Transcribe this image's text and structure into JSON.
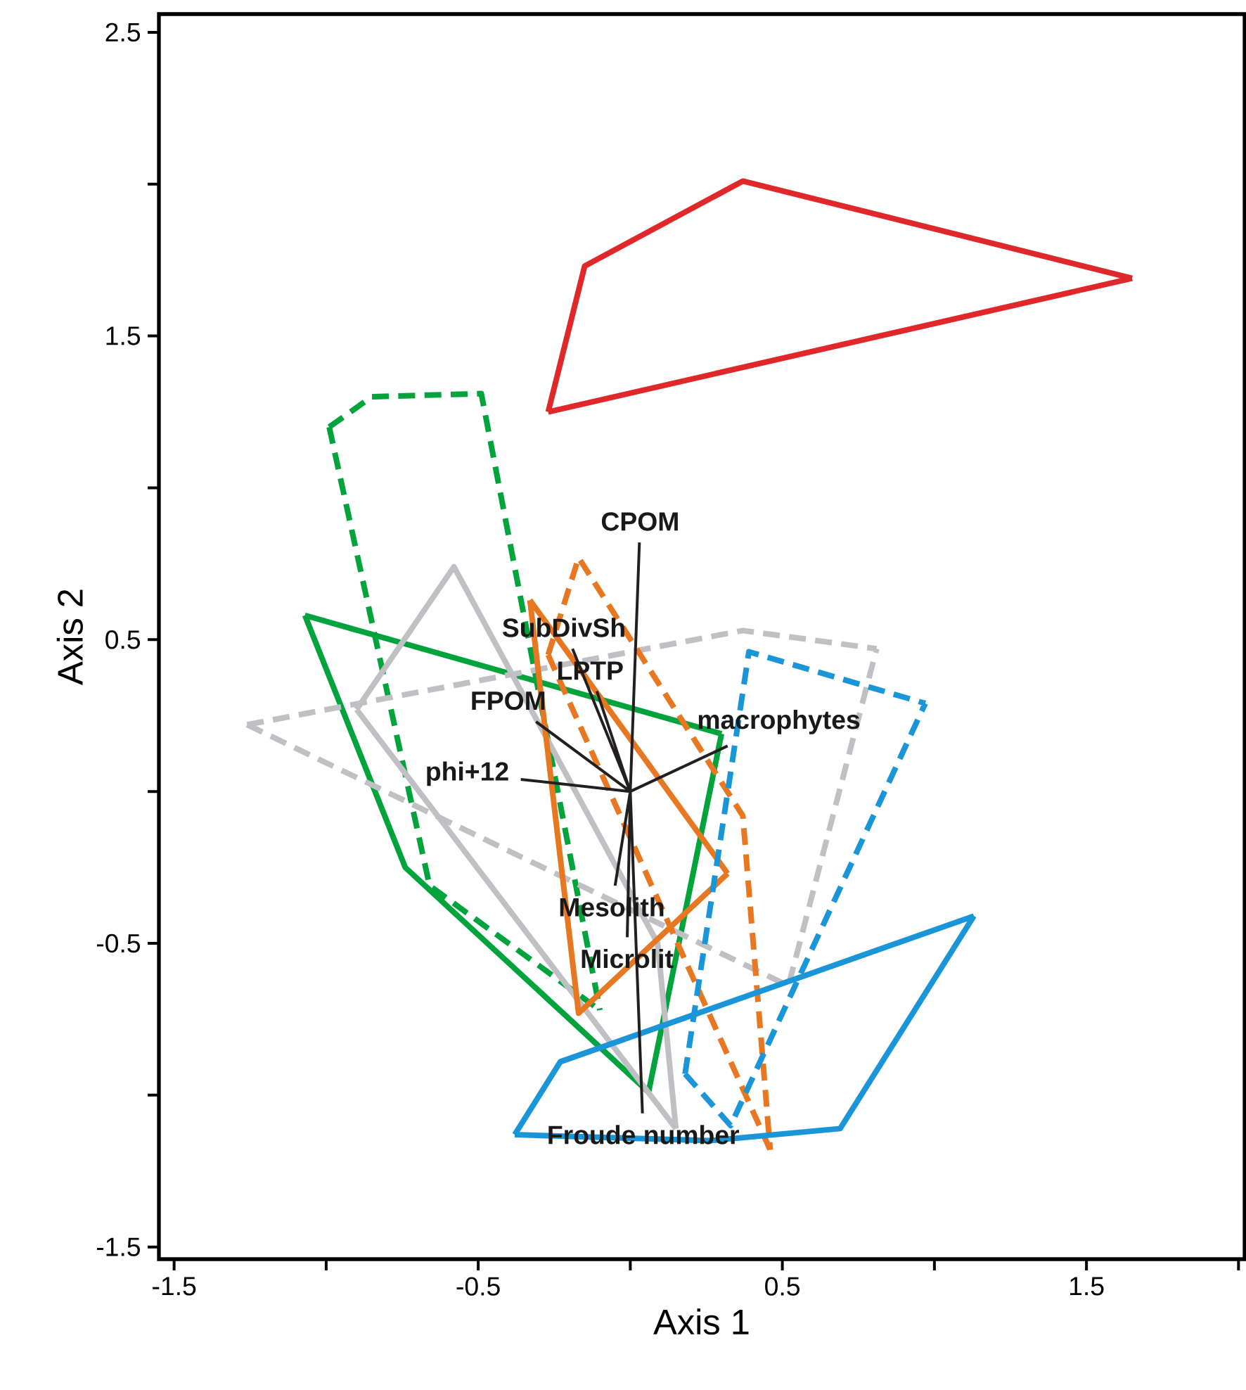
{
  "chart_data": {
    "type": "line",
    "xlabel": "Axis 1",
    "ylabel": "Axis 2",
    "xlim": [
      -1.55,
      2.02
    ],
    "ylim": [
      -1.54,
      2.56
    ],
    "xticks": [
      -1.5,
      {
        "value": -1,
        "label": null
      },
      -0.5,
      {
        "value": 0,
        "label": null
      },
      0.5,
      {
        "value": 1,
        "label": null
      },
      1.5,
      {
        "value": 2,
        "label": null
      }
    ],
    "yticks": [
      -1.5,
      {
        "value": -1,
        "label": null
      },
      -0.5,
      {
        "value": 0,
        "label": null
      },
      0.5,
      {
        "value": 1,
        "label": null
      },
      1.5,
      {
        "value": 2,
        "label": null
      },
      2.5
    ],
    "marker": "none",
    "series": [
      {
        "color": "#e0282a",
        "line_style": "solid",
        "x": [
          -0.27,
          -0.15,
          0.37,
          1.65,
          null,
          -0.27,
          1.65
        ],
        "values": [
          1.25,
          1.73,
          2.01,
          1.69,
          null,
          1.25,
          1.69
        ]
      },
      {
        "color": "#00a33c",
        "line_style": "dashed",
        "x": [
          -0.99,
          -0.85,
          -0.49,
          -0.1,
          null,
          -0.99,
          -0.66,
          -0.1
        ],
        "values": [
          1.2,
          1.3,
          1.31,
          -0.72,
          null,
          1.2,
          -0.31,
          -0.72
        ]
      },
      {
        "color": "#00a33c",
        "line_style": "solid",
        "x": [
          -1.07,
          0.3,
          null,
          -1.07,
          -0.74,
          0.06,
          0.3
        ],
        "values": [
          0.58,
          0.19,
          null,
          0.58,
          -0.25,
          -0.99,
          0.19
        ]
      },
      {
        "color": "#c0c0c4",
        "line_style": "solid",
        "x": [
          -0.9,
          -0.58,
          0.09,
          0.15,
          null,
          -0.9,
          0.15
        ],
        "values": [
          0.27,
          0.74,
          -0.5,
          -1.11,
          null,
          0.27,
          -1.11
        ]
      },
      {
        "color": "#c0c0c4",
        "line_style": "dashed",
        "x": [
          -1.26,
          0.37,
          0.81,
          null,
          -1.26,
          0.52,
          0.81
        ],
        "values": [
          0.22,
          0.53,
          0.47,
          null,
          0.22,
          -0.64,
          0.47
        ]
      },
      {
        "color": "#e87722",
        "line_style": "solid",
        "x": [
          -0.33,
          0.32,
          null,
          -0.33,
          -0.17,
          0.32
        ],
        "values": [
          0.63,
          -0.27,
          null,
          0.63,
          -0.73,
          -0.27
        ]
      },
      {
        "color": "#e87722",
        "line_style": "dashed",
        "x": [
          -0.27,
          -0.17,
          0.37,
          0.46,
          null,
          -0.27,
          0.46
        ],
        "values": [
          0.45,
          0.77,
          -0.08,
          -1.18,
          null,
          0.45,
          -1.18
        ]
      },
      {
        "color": "#1a96d8",
        "line_style": "dashed",
        "x": [
          0.18,
          0.39,
          0.97,
          null,
          0.18,
          0.33,
          0.97
        ],
        "values": [
          -0.93,
          0.46,
          0.29,
          null,
          -0.93,
          -1.1,
          0.29
        ]
      },
      {
        "color": "#1a96d8",
        "line_style": "solid",
        "x": [
          -0.38,
          -0.23,
          1.13,
          null,
          -0.38,
          0.26,
          0.69,
          1.13
        ],
        "values": [
          -1.13,
          -0.89,
          -0.41,
          null,
          -1.13,
          -1.15,
          -1.11,
          -0.41
        ]
      },
      {
        "color": "#231f20",
        "line_style": "solid",
        "x": [
          0,
          0.03,
          null,
          0,
          -0.19,
          null,
          0,
          -0.11,
          null,
          0,
          -0.31,
          null,
          0,
          -0.36,
          null,
          0,
          0.32,
          null,
          0,
          -0.05,
          null,
          0,
          -0.01,
          null,
          0,
          0.04
        ],
        "values": [
          0,
          0.82,
          null,
          0,
          0.47,
          null,
          0,
          0.33,
          null,
          0,
          0.23,
          null,
          0,
          0.04,
          null,
          0,
          0.15,
          null,
          0,
          -0.31,
          null,
          0,
          -0.48,
          null,
          0,
          -1.06
        ]
      }
    ],
    "annotations": [
      "CPOM",
      "SubDivSh",
      "LPTP",
      "FPOM",
      "phi+12",
      "macrophytes",
      "Mesolith",
      "Microlit",
      "Froude number"
    ]
  }
}
